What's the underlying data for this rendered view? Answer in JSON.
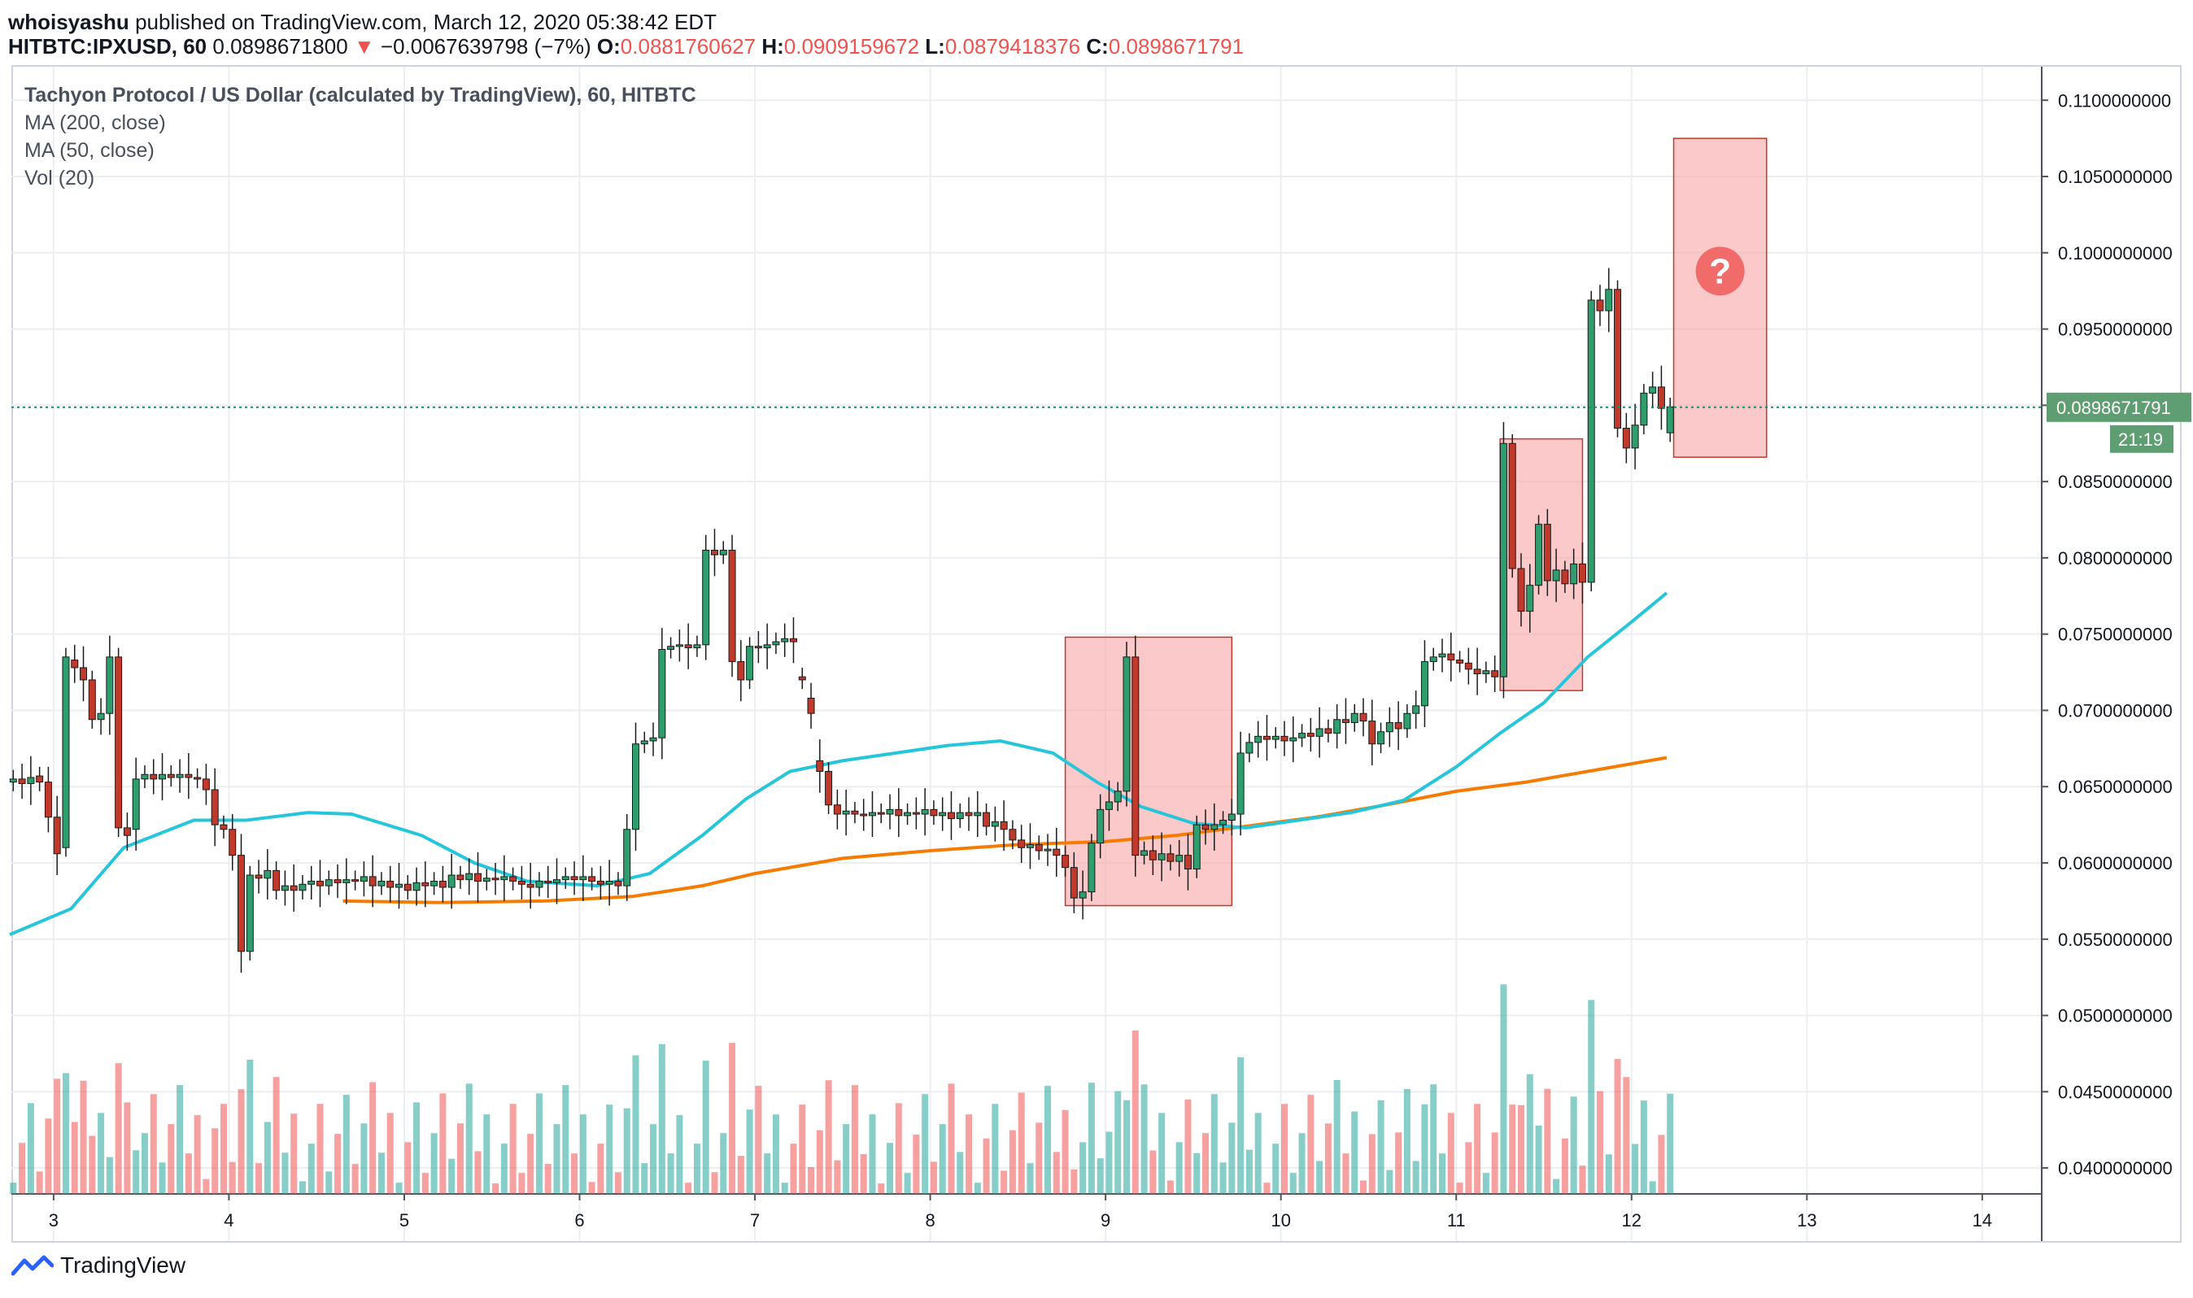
{
  "header": {
    "user": "whoisyashu",
    "published": "published on TradingView.com, March 12, 2020 05:38:42 EDT"
  },
  "quote": {
    "symbol": "HITBTC:IPXUSD, 60",
    "last": "0.0898671800",
    "change": "−0.0067639798 (−7%)",
    "o_label": "O:",
    "o": "0.0881760627",
    "h_label": "H:",
    "h": "0.0909159672",
    "l_label": "L:",
    "l": "0.0879418376",
    "c_label": "C:",
    "c": "0.0898671791"
  },
  "legend": {
    "title": "Tachyon Protocol / US Dollar (calculated by TradingView), 60, HITBTC",
    "ma200": "MA (200, close)",
    "ma50": "MA (50, close)",
    "vol": "Vol (20)"
  },
  "brand": {
    "name": "TradingView"
  },
  "colors": {
    "up": "#26a69a",
    "down": "#ef5350",
    "ma50": "#26c6da",
    "ma200": "#f57c00",
    "zone": "#f8a5a5"
  },
  "chart_data": {
    "type": "candlestick",
    "title": "Tachyon Protocol / US Dollar (calculated by TradingView), 60, HITBTC",
    "x_ticks": [
      "3",
      "4",
      "5",
      "6",
      "7",
      "8",
      "9",
      "10",
      "11",
      "12",
      "13",
      "14"
    ],
    "x_range_days": [
      2.75,
      14.2
    ],
    "y_ticks": [
      "0.0400000000",
      "0.0450000000",
      "0.0500000000",
      "0.0550000000",
      "0.0600000000",
      "0.0650000000",
      "0.0700000000",
      "0.0750000000",
      "0.0800000000",
      "0.0850000000",
      "0.0900000000",
      "0.0950000000",
      "0.1000000000",
      "0.1050000000",
      "0.1100000000"
    ],
    "y_range": [
      0.0383,
      0.1122
    ],
    "last_price": "0.0898671791",
    "countdown": "21:19",
    "last_value": 0.08987,
    "annotation_symbol": "?",
    "ma50": [
      [
        2.75,
        0.0553
      ],
      [
        3.1,
        0.057
      ],
      [
        3.4,
        0.061
      ],
      [
        3.8,
        0.0628
      ],
      [
        4.1,
        0.0628
      ],
      [
        4.45,
        0.0633
      ],
      [
        4.7,
        0.0632
      ],
      [
        5.1,
        0.0618
      ],
      [
        5.4,
        0.06
      ],
      [
        5.7,
        0.0588
      ],
      [
        6.1,
        0.0585
      ],
      [
        6.4,
        0.0593
      ],
      [
        6.7,
        0.0618
      ],
      [
        6.95,
        0.0642
      ],
      [
        7.2,
        0.066
      ],
      [
        7.5,
        0.0667
      ],
      [
        7.8,
        0.0672
      ],
      [
        8.1,
        0.0677
      ],
      [
        8.4,
        0.068
      ],
      [
        8.7,
        0.0672
      ],
      [
        8.95,
        0.0653
      ],
      [
        9.2,
        0.0637
      ],
      [
        9.5,
        0.0626
      ],
      [
        9.8,
        0.0623
      ],
      [
        10.1,
        0.0628
      ],
      [
        10.4,
        0.0633
      ],
      [
        10.7,
        0.0641
      ],
      [
        11.0,
        0.0663
      ],
      [
        11.25,
        0.0685
      ],
      [
        11.5,
        0.0705
      ],
      [
        11.75,
        0.0735
      ],
      [
        12.0,
        0.0758
      ],
      [
        12.2,
        0.0777
      ]
    ],
    "ma200": [
      [
        4.65,
        0.0575
      ],
      [
        5.2,
        0.0574
      ],
      [
        5.8,
        0.0575
      ],
      [
        6.3,
        0.0578
      ],
      [
        6.7,
        0.0585
      ],
      [
        7.0,
        0.0593
      ],
      [
        7.5,
        0.0603
      ],
      [
        8.0,
        0.0608
      ],
      [
        8.5,
        0.0612
      ],
      [
        9.0,
        0.0614
      ],
      [
        9.4,
        0.0618
      ],
      [
        9.8,
        0.0624
      ],
      [
        10.2,
        0.063
      ],
      [
        10.6,
        0.0638
      ],
      [
        11.0,
        0.0647
      ],
      [
        11.4,
        0.0653
      ],
      [
        11.8,
        0.0661
      ],
      [
        12.2,
        0.0669
      ]
    ],
    "zones": [
      {
        "x1": 8.77,
        "x2": 9.72,
        "y1": 0.0572,
        "y2": 0.0748
      },
      {
        "x1": 11.25,
        "x2": 11.72,
        "y1": 0.0713,
        "y2": 0.0878
      },
      {
        "x1": 12.24,
        "x2": 12.77,
        "y1": 0.0866,
        "y2": 0.1075
      }
    ],
    "candles": [
      {
        "x": 2.77,
        "o": 0.0653,
        "c": 0.0655
      },
      {
        "x": 2.82,
        "o": 0.0655,
        "c": 0.0652
      },
      {
        "x": 2.87,
        "o": 0.0652,
        "c": 0.0656
      },
      {
        "x": 2.92,
        "o": 0.0657,
        "c": 0.0653
      },
      {
        "x": 2.97,
        "o": 0.0653,
        "c": 0.063
      },
      {
        "x": 3.02,
        "o": 0.063,
        "c": 0.0606
      },
      {
        "x": 3.07,
        "o": 0.061,
        "c": 0.0735
      },
      {
        "x": 3.12,
        "o": 0.0733,
        "c": 0.0728
      },
      {
        "x": 3.17,
        "o": 0.0728,
        "c": 0.072
      },
      {
        "x": 3.22,
        "o": 0.072,
        "c": 0.0694
      },
      {
        "x": 3.27,
        "o": 0.0694,
        "c": 0.0698
      },
      {
        "x": 3.32,
        "o": 0.0698,
        "c": 0.0735
      },
      {
        "x": 3.37,
        "o": 0.0735,
        "c": 0.0623
      },
      {
        "x": 3.42,
        "o": 0.0623,
        "c": 0.0618
      },
      {
        "x": 3.47,
        "o": 0.0622,
        "c": 0.0655
      },
      {
        "x": 3.52,
        "o": 0.0655,
        "c": 0.0658
      },
      {
        "x": 3.57,
        "o": 0.0658,
        "c": 0.0655
      },
      {
        "x": 3.62,
        "o": 0.0655,
        "c": 0.0658
      },
      {
        "x": 3.67,
        "o": 0.0658,
        "c": 0.0656
      },
      {
        "x": 3.72,
        "o": 0.0656,
        "c": 0.0658
      },
      {
        "x": 3.77,
        "o": 0.0658,
        "c": 0.0656
      },
      {
        "x": 3.82,
        "o": 0.0656,
        "c": 0.0655
      },
      {
        "x": 3.87,
        "o": 0.0655,
        "c": 0.0648
      },
      {
        "x": 3.92,
        "o": 0.0648,
        "c": 0.0625
      },
      {
        "x": 3.97,
        "o": 0.0625,
        "c": 0.0622
      },
      {
        "x": 4.02,
        "o": 0.0622,
        "c": 0.0605
      },
      {
        "x": 4.07,
        "o": 0.0605,
        "c": 0.0542
      },
      {
        "x": 4.12,
        "o": 0.0542,
        "c": 0.0592
      },
      {
        "x": 4.17,
        "o": 0.0592,
        "c": 0.059
      },
      {
        "x": 4.22,
        "o": 0.059,
        "c": 0.0595
      },
      {
        "x": 4.27,
        "o": 0.0595,
        "c": 0.0582
      },
      {
        "x": 4.32,
        "o": 0.0582,
        "c": 0.0585
      },
      {
        "x": 4.37,
        "o": 0.0585,
        "c": 0.0582
      },
      {
        "x": 4.42,
        "o": 0.0582,
        "c": 0.0586
      },
      {
        "x": 4.47,
        "o": 0.0586,
        "c": 0.0588
      },
      {
        "x": 4.52,
        "o": 0.0588,
        "c": 0.0585
      },
      {
        "x": 4.57,
        "o": 0.0585,
        "c": 0.0589
      },
      {
        "x": 4.62,
        "o": 0.0589,
        "c": 0.0587
      },
      {
        "x": 4.67,
        "o": 0.0587,
        "c": 0.0589
      },
      {
        "x": 4.72,
        "o": 0.0589,
        "c": 0.0588
      },
      {
        "x": 4.77,
        "o": 0.0588,
        "c": 0.0591
      },
      {
        "x": 4.82,
        "o": 0.0591,
        "c": 0.0585
      },
      {
        "x": 4.87,
        "o": 0.0585,
        "c": 0.0588
      },
      {
        "x": 4.92,
        "o": 0.0588,
        "c": 0.0584
      },
      {
        "x": 4.97,
        "o": 0.0584,
        "c": 0.0586
      },
      {
        "x": 5.02,
        "o": 0.0586,
        "c": 0.0582
      },
      {
        "x": 5.07,
        "o": 0.0582,
        "c": 0.0587
      },
      {
        "x": 5.12,
        "o": 0.0587,
        "c": 0.0585
      },
      {
        "x": 5.17,
        "o": 0.0585,
        "c": 0.0588
      },
      {
        "x": 5.22,
        "o": 0.0588,
        "c": 0.0584
      },
      {
        "x": 5.27,
        "o": 0.0584,
        "c": 0.0592
      },
      {
        "x": 5.32,
        "o": 0.0592,
        "c": 0.0589
      },
      {
        "x": 5.37,
        "o": 0.0589,
        "c": 0.0593
      },
      {
        "x": 5.42,
        "o": 0.0593,
        "c": 0.0588
      },
      {
        "x": 5.47,
        "o": 0.0588,
        "c": 0.059
      },
      {
        "x": 5.52,
        "o": 0.059,
        "c": 0.0589
      },
      {
        "x": 5.57,
        "o": 0.0589,
        "c": 0.0591
      },
      {
        "x": 5.62,
        "o": 0.0591,
        "c": 0.0588
      },
      {
        "x": 5.67,
        "o": 0.0588,
        "c": 0.0586
      },
      {
        "x": 5.72,
        "o": 0.0586,
        "c": 0.0584
      },
      {
        "x": 5.77,
        "o": 0.0584,
        "c": 0.0588
      },
      {
        "x": 5.82,
        "o": 0.0588,
        "c": 0.0587
      },
      {
        "x": 5.87,
        "o": 0.0587,
        "c": 0.0589
      },
      {
        "x": 5.92,
        "o": 0.0589,
        "c": 0.0591
      },
      {
        "x": 5.97,
        "o": 0.0591,
        "c": 0.0589
      },
      {
        "x": 6.02,
        "o": 0.0589,
        "c": 0.0591
      },
      {
        "x": 6.07,
        "o": 0.0591,
        "c": 0.0588
      },
      {
        "x": 6.12,
        "o": 0.0588,
        "c": 0.0586
      },
      {
        "x": 6.17,
        "o": 0.0586,
        "c": 0.0588
      },
      {
        "x": 6.22,
        "o": 0.0588,
        "c": 0.0585
      },
      {
        "x": 6.27,
        "o": 0.0585,
        "c": 0.0622
      },
      {
        "x": 6.32,
        "o": 0.0622,
        "c": 0.0678
      },
      {
        "x": 6.37,
        "o": 0.0678,
        "c": 0.068
      },
      {
        "x": 6.42,
        "o": 0.068,
        "c": 0.0682
      },
      {
        "x": 6.47,
        "o": 0.0682,
        "c": 0.074
      },
      {
        "x": 6.52,
        "o": 0.074,
        "c": 0.0742
      },
      {
        "x": 6.57,
        "o": 0.0742,
        "c": 0.0743
      },
      {
        "x": 6.62,
        "o": 0.0743,
        "c": 0.0741
      },
      {
        "x": 6.67,
        "o": 0.0741,
        "c": 0.0743
      },
      {
        "x": 6.72,
        "o": 0.0743,
        "c": 0.0805
      },
      {
        "x": 6.77,
        "o": 0.0805,
        "c": 0.0802
      },
      {
        "x": 6.82,
        "o": 0.0802,
        "c": 0.0805
      },
      {
        "x": 6.87,
        "o": 0.0805,
        "c": 0.0732
      },
      {
        "x": 6.92,
        "o": 0.0732,
        "c": 0.072
      },
      {
        "x": 6.97,
        "o": 0.072,
        "c": 0.0742
      },
      {
        "x": 7.02,
        "o": 0.0742,
        "c": 0.0741
      },
      {
        "x": 7.07,
        "o": 0.0741,
        "c": 0.0743
      },
      {
        "x": 7.12,
        "o": 0.0743,
        "c": 0.0745
      },
      {
        "x": 7.17,
        "o": 0.0745,
        "c": 0.0747
      },
      {
        "x": 7.22,
        "o": 0.0747,
        "c": 0.0745
      },
      {
        "x": 7.27,
        "o": 0.0722,
        "c": 0.072
      },
      {
        "x": 7.32,
        "o": 0.0708,
        "c": 0.0698
      },
      {
        "x": 7.37,
        "o": 0.0667,
        "c": 0.066
      },
      {
        "x": 7.42,
        "o": 0.066,
        "c": 0.0638
      },
      {
        "x": 7.47,
        "o": 0.0638,
        "c": 0.0632
      },
      {
        "x": 7.52,
        "o": 0.0632,
        "c": 0.0634
      },
      {
        "x": 7.57,
        "o": 0.0634,
        "c": 0.0632
      },
      {
        "x": 7.62,
        "o": 0.0632,
        "c": 0.0631
      },
      {
        "x": 7.67,
        "o": 0.0631,
        "c": 0.0633
      },
      {
        "x": 7.72,
        "o": 0.0633,
        "c": 0.0632
      },
      {
        "x": 7.77,
        "o": 0.0632,
        "c": 0.0635
      },
      {
        "x": 7.82,
        "o": 0.0635,
        "c": 0.0631
      },
      {
        "x": 7.87,
        "o": 0.0631,
        "c": 0.0633
      },
      {
        "x": 7.92,
        "o": 0.0633,
        "c": 0.0632
      },
      {
        "x": 7.97,
        "o": 0.0632,
        "c": 0.0635
      },
      {
        "x": 8.02,
        "o": 0.0635,
        "c": 0.0631
      },
      {
        "x": 8.07,
        "o": 0.0631,
        "c": 0.0633
      },
      {
        "x": 8.12,
        "o": 0.0633,
        "c": 0.0629
      },
      {
        "x": 8.17,
        "o": 0.0629,
        "c": 0.0633
      },
      {
        "x": 8.22,
        "o": 0.0633,
        "c": 0.0631
      },
      {
        "x": 8.27,
        "o": 0.0631,
        "c": 0.0633
      },
      {
        "x": 8.32,
        "o": 0.0633,
        "c": 0.0624
      },
      {
        "x": 8.37,
        "o": 0.0624,
        "c": 0.0627
      },
      {
        "x": 8.42,
        "o": 0.0627,
        "c": 0.0622
      },
      {
        "x": 8.47,
        "o": 0.0622,
        "c": 0.0615
      },
      {
        "x": 8.52,
        "o": 0.0615,
        "c": 0.061
      },
      {
        "x": 8.57,
        "o": 0.061,
        "c": 0.0612
      },
      {
        "x": 8.62,
        "o": 0.0612,
        "c": 0.0608
      },
      {
        "x": 8.67,
        "o": 0.0608,
        "c": 0.0609
      },
      {
        "x": 8.72,
        "o": 0.0609,
        "c": 0.0605
      },
      {
        "x": 8.77,
        "o": 0.0605,
        "c": 0.0597
      },
      {
        "x": 8.82,
        "o": 0.0597,
        "c": 0.0577
      },
      {
        "x": 8.87,
        "o": 0.0577,
        "c": 0.0581
      },
      {
        "x": 8.92,
        "o": 0.0581,
        "c": 0.0613
      },
      {
        "x": 8.97,
        "o": 0.0613,
        "c": 0.0635
      },
      {
        "x": 9.02,
        "o": 0.0635,
        "c": 0.064
      },
      {
        "x": 9.07,
        "o": 0.064,
        "c": 0.0647
      },
      {
        "x": 9.12,
        "o": 0.0647,
        "c": 0.0735
      },
      {
        "x": 9.17,
        "o": 0.0735,
        "c": 0.0605
      },
      {
        "x": 9.22,
        "o": 0.0605,
        "c": 0.0608
      },
      {
        "x": 9.27,
        "o": 0.0608,
        "c": 0.0602
      },
      {
        "x": 9.32,
        "o": 0.0602,
        "c": 0.0606
      },
      {
        "x": 9.37,
        "o": 0.0606,
        "c": 0.0601
      },
      {
        "x": 9.42,
        "o": 0.0601,
        "c": 0.0605
      },
      {
        "x": 9.47,
        "o": 0.0605,
        "c": 0.0596
      },
      {
        "x": 9.52,
        "o": 0.0596,
        "c": 0.0625
      },
      {
        "x": 9.57,
        "o": 0.0625,
        "c": 0.0622
      },
      {
        "x": 9.62,
        "o": 0.0622,
        "c": 0.0625
      },
      {
        "x": 9.67,
        "o": 0.0625,
        "c": 0.0628
      },
      {
        "x": 9.72,
        "o": 0.0628,
        "c": 0.0632
      },
      {
        "x": 9.77,
        "o": 0.0632,
        "c": 0.0672
      },
      {
        "x": 9.82,
        "o": 0.0672,
        "c": 0.0679
      },
      {
        "x": 9.87,
        "o": 0.0679,
        "c": 0.0683
      },
      {
        "x": 9.92,
        "o": 0.0683,
        "c": 0.0681
      },
      {
        "x": 9.97,
        "o": 0.0681,
        "c": 0.0683
      },
      {
        "x": 10.02,
        "o": 0.0683,
        "c": 0.068
      },
      {
        "x": 10.07,
        "o": 0.068,
        "c": 0.0682
      },
      {
        "x": 10.12,
        "o": 0.0682,
        "c": 0.0685
      },
      {
        "x": 10.17,
        "o": 0.0685,
        "c": 0.0683
      },
      {
        "x": 10.22,
        "o": 0.0683,
        "c": 0.0688
      },
      {
        "x": 10.27,
        "o": 0.0688,
        "c": 0.0685
      },
      {
        "x": 10.32,
        "o": 0.0685,
        "c": 0.0694
      },
      {
        "x": 10.37,
        "o": 0.0694,
        "c": 0.0692
      },
      {
        "x": 10.42,
        "o": 0.0692,
        "c": 0.0698
      },
      {
        "x": 10.47,
        "o": 0.0698,
        "c": 0.0693
      },
      {
        "x": 10.52,
        "o": 0.0693,
        "c": 0.0678
      },
      {
        "x": 10.57,
        "o": 0.0678,
        "c": 0.0686
      },
      {
        "x": 10.62,
        "o": 0.0686,
        "c": 0.0692
      },
      {
        "x": 10.67,
        "o": 0.0692,
        "c": 0.0688
      },
      {
        "x": 10.72,
        "o": 0.0688,
        "c": 0.0698
      },
      {
        "x": 10.77,
        "o": 0.0698,
        "c": 0.0703
      },
      {
        "x": 10.82,
        "o": 0.0703,
        "c": 0.0732
      },
      {
        "x": 10.87,
        "o": 0.0732,
        "c": 0.0735
      },
      {
        "x": 10.92,
        "o": 0.0735,
        "c": 0.0737
      },
      {
        "x": 10.97,
        "o": 0.0737,
        "c": 0.0733
      },
      {
        "x": 11.02,
        "o": 0.0733,
        "c": 0.0731
      },
      {
        "x": 11.07,
        "o": 0.0731,
        "c": 0.0727
      },
      {
        "x": 11.12,
        "o": 0.0727,
        "c": 0.0724
      },
      {
        "x": 11.17,
        "o": 0.0724,
        "c": 0.0726
      },
      {
        "x": 11.22,
        "o": 0.0726,
        "c": 0.0722
      },
      {
        "x": 11.27,
        "o": 0.0722,
        "c": 0.0875
      },
      {
        "x": 11.32,
        "o": 0.0875,
        "c": 0.0793
      },
      {
        "x": 11.37,
        "o": 0.0793,
        "c": 0.0765
      },
      {
        "x": 11.42,
        "o": 0.0765,
        "c": 0.0782
      },
      {
        "x": 11.47,
        "o": 0.0782,
        "c": 0.0822
      },
      {
        "x": 11.52,
        "o": 0.0822,
        "c": 0.0785
      },
      {
        "x": 11.57,
        "o": 0.0785,
        "c": 0.0792
      },
      {
        "x": 11.62,
        "o": 0.0792,
        "c": 0.0783
      },
      {
        "x": 11.67,
        "o": 0.0783,
        "c": 0.0796
      },
      {
        "x": 11.72,
        "o": 0.0796,
        "c": 0.0784
      },
      {
        "x": 11.77,
        "o": 0.0784,
        "c": 0.0969
      },
      {
        "x": 11.82,
        "o": 0.0969,
        "c": 0.0962
      },
      {
        "x": 11.87,
        "o": 0.0962,
        "c": 0.0976
      },
      {
        "x": 11.92,
        "o": 0.0976,
        "c": 0.0885
      },
      {
        "x": 11.97,
        "o": 0.0885,
        "c": 0.0872
      },
      {
        "x": 12.02,
        "o": 0.0872,
        "c": 0.0887
      },
      {
        "x": 12.07,
        "o": 0.0887,
        "c": 0.0908
      },
      {
        "x": 12.12,
        "o": 0.0908,
        "c": 0.0912
      },
      {
        "x": 12.17,
        "o": 0.0912,
        "c": 0.0898
      },
      {
        "x": 12.22,
        "o": 0.0882,
        "c": 0.0899
      }
    ]
  }
}
